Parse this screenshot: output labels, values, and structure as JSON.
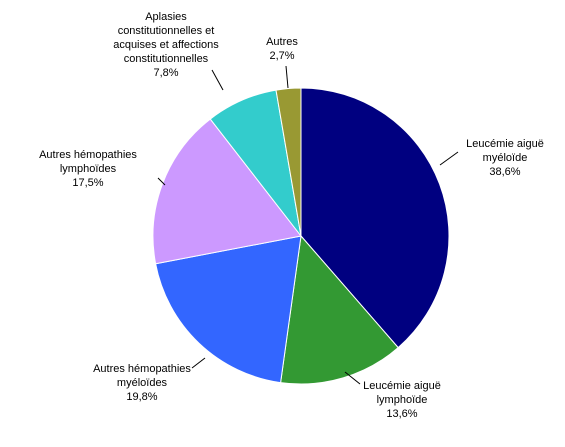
{
  "chart_data": {
    "type": "pie",
    "categories": [
      "Leucémie aiguë\nmyéloïde",
      "Leucémie aiguë\nlymphoïde",
      "Autres hémopathies\nmyéloïdes",
      "Autres hémopathies\nlymphoïdes",
      "Aplasies\nconstitutionnelles et\nacquises et affections\nconstitutionnelles",
      "Autres"
    ],
    "values": [
      38.6,
      13.6,
      19.8,
      17.5,
      7.8,
      2.7
    ],
    "value_labels": [
      "38,6%",
      "13,6%",
      "19,8%",
      "17,5%",
      "7,8%",
      "2,7%"
    ],
    "colors": [
      "#000080",
      "#339933",
      "#3366ff",
      "#cc99ff",
      "#33cccc",
      "#999933"
    ]
  }
}
